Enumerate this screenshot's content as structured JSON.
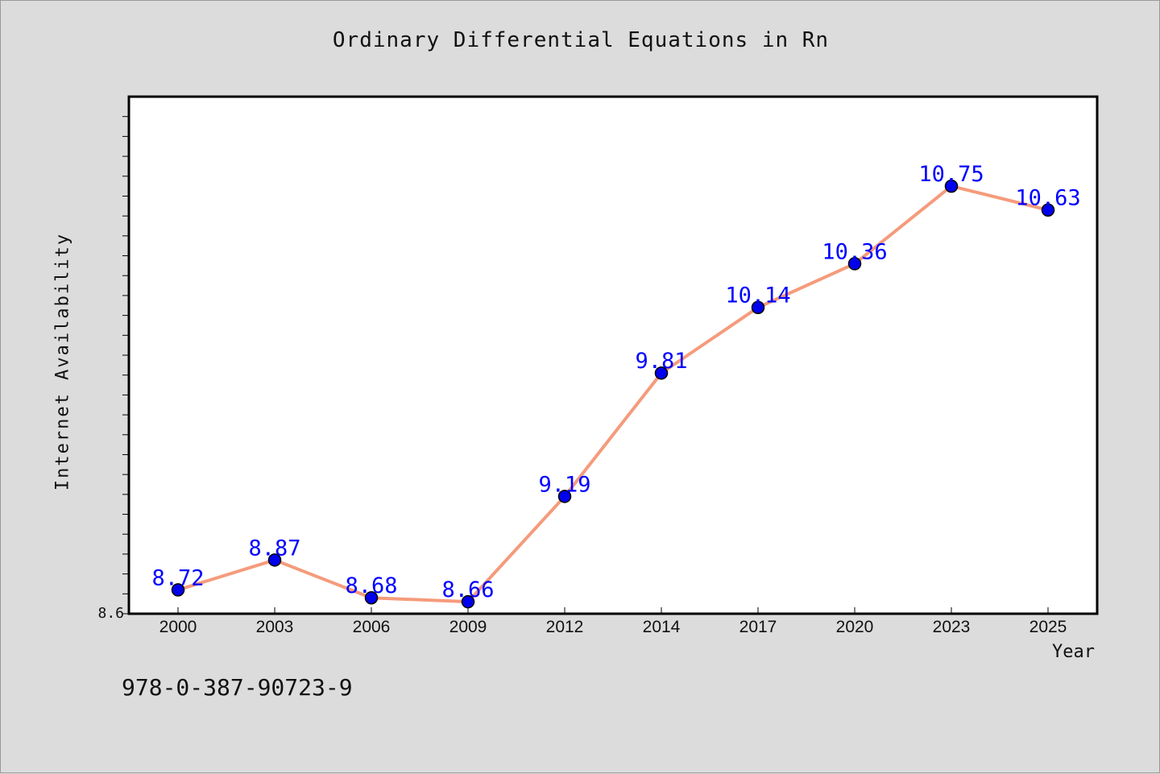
{
  "chart_data": {
    "type": "line",
    "title": "Ordinary Differential Equations in Rn",
    "xlabel": "Year",
    "ylabel": "Internet Availability",
    "categories": [
      "2000",
      "2003",
      "2006",
      "2009",
      "2012",
      "2014",
      "2017",
      "2020",
      "2023",
      "2025"
    ],
    "series": [
      {
        "values": [
          8.72,
          8.87,
          8.68,
          8.66,
          9.19,
          9.81,
          10.14,
          10.36,
          10.75,
          10.63
        ],
        "labels": [
          "8.72",
          "8.87",
          "8.68",
          "8.66",
          "9.19",
          "9.81",
          "10.14",
          "10.36",
          "10.75",
          "10.63"
        ],
        "line_color": "#f59b7c",
        "marker_color": "#0000ee"
      }
    ],
    "ylim": [
      8.6,
      11.2
    ],
    "y_tick_labels": [
      "8.6"
    ],
    "grid": false,
    "label_color": "#0000ff"
  },
  "footer": {
    "text": "978-0-387-90723-9"
  }
}
